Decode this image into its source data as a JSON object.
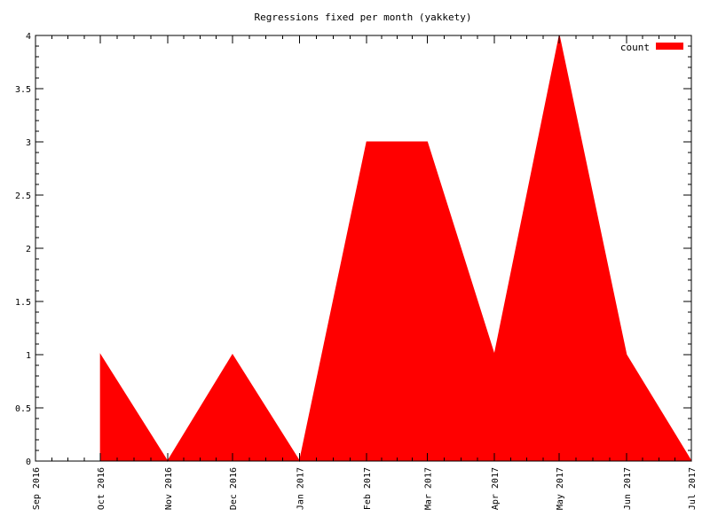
{
  "chart_data": {
    "type": "area",
    "title": "Regressions fixed per month (yakkety)",
    "xlabel": "",
    "ylabel": "",
    "x_ticks": [
      "Sep 2016",
      "Oct 2016",
      "Nov 2016",
      "Dec 2016",
      "Jan 2017",
      "Feb 2017",
      "Mar 2017",
      "Apr 2017",
      "May 2017",
      "Jun 2017",
      "Jul 2017"
    ],
    "x_range": [
      "2016-09-01",
      "2017-07-01"
    ],
    "y_ticks": [
      "0",
      "0.5",
      "1",
      "1.5",
      "2",
      "2.5",
      "3",
      "3.5",
      "4"
    ],
    "ylim": [
      0,
      4
    ],
    "grid": false,
    "legend_position": "top-right",
    "series": [
      {
        "name": "count",
        "color": "#ff0000",
        "points": [
          {
            "x": "2016-10-01",
            "y": 1
          },
          {
            "x": "2016-11-01",
            "y": 0
          },
          {
            "x": "2016-12-01",
            "y": 1
          },
          {
            "x": "2017-01-01",
            "y": 0
          },
          {
            "x": "2017-02-01",
            "y": 3
          },
          {
            "x": "2017-03-01",
            "y": 3
          },
          {
            "x": "2017-04-01",
            "y": 1
          },
          {
            "x": "2017-05-01",
            "y": 4
          },
          {
            "x": "2017-06-01",
            "y": 1
          },
          {
            "x": "2017-07-01",
            "y": 0
          }
        ]
      }
    ]
  }
}
